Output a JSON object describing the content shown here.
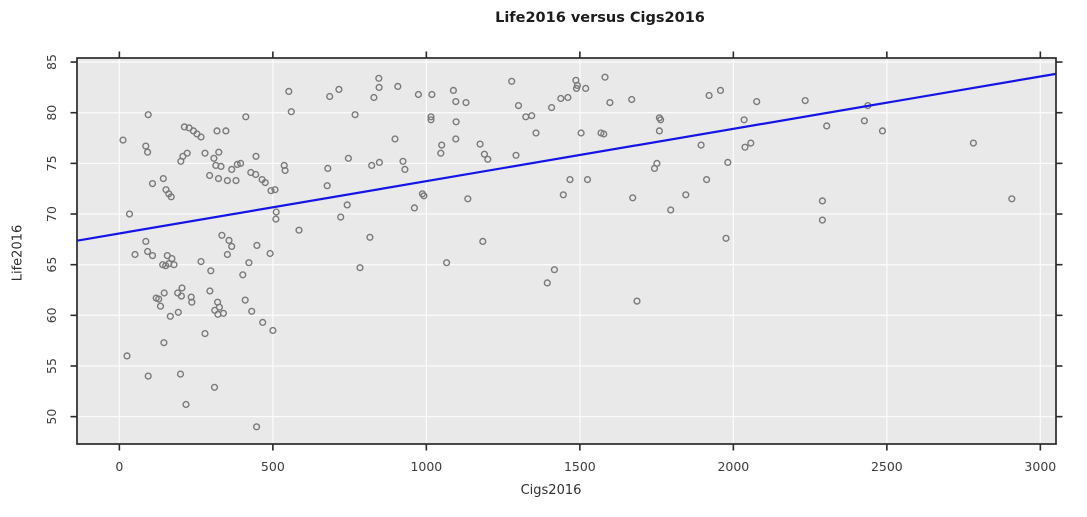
{
  "chart_data": {
    "type": "scatter",
    "title": "Life2016 versus Cigs2016",
    "xlabel": "Cigs2016",
    "ylabel": "Life2016",
    "xlim": [
      -138,
      3051
    ],
    "ylim": [
      47.3,
      85.4
    ],
    "x_ticks": [
      0,
      500,
      1000,
      1500,
      2000,
      2500,
      3000
    ],
    "y_ticks": [
      50,
      55,
      60,
      65,
      70,
      75,
      80,
      85
    ],
    "grid": true,
    "legend_position": "none",
    "regression_line": {
      "slope": 0.005164,
      "intercept": 68.08
    },
    "colors": {
      "panel_bg": "#e9e9e9",
      "gridline": "#fafafa",
      "box": "#2b2b2b",
      "tick": "#2b2b2b",
      "tick_label": "#3d3d3d",
      "point": "#7a7a7a",
      "line": "#1414e6"
    },
    "points": [
      [
        12,
        77.3
      ],
      [
        94,
        79.8
      ],
      [
        86,
        76.7
      ],
      [
        92,
        76.1
      ],
      [
        33,
        70.0
      ],
      [
        212,
        78.6
      ],
      [
        227,
        78.5
      ],
      [
        241,
        78.2
      ],
      [
        253,
        77.9
      ],
      [
        266,
        77.6
      ],
      [
        318,
        78.2
      ],
      [
        347,
        78.2
      ],
      [
        412,
        79.6
      ],
      [
        552,
        82.1
      ],
      [
        560,
        80.1
      ],
      [
        685,
        81.6
      ],
      [
        715,
        82.3
      ],
      [
        768,
        79.8
      ],
      [
        829,
        81.5
      ],
      [
        845,
        83.4
      ],
      [
        846,
        82.5
      ],
      [
        907,
        82.6
      ],
      [
        898,
        77.4
      ],
      [
        924,
        75.2
      ],
      [
        930,
        74.4
      ],
      [
        200,
        75.2
      ],
      [
        207,
        75.7
      ],
      [
        221,
        76.0
      ],
      [
        279,
        76.0
      ],
      [
        308,
        75.5
      ],
      [
        324,
        76.1
      ],
      [
        314,
        74.8
      ],
      [
        331,
        74.7
      ],
      [
        366,
        74.4
      ],
      [
        384,
        74.9
      ],
      [
        395,
        75.0
      ],
      [
        294,
        73.8
      ],
      [
        323,
        73.5
      ],
      [
        352,
        73.3
      ],
      [
        380,
        73.3
      ],
      [
        428,
        74.1
      ],
      [
        444,
        73.9
      ],
      [
        445,
        75.7
      ],
      [
        465,
        73.4
      ],
      [
        475,
        73.1
      ],
      [
        494,
        72.3
      ],
      [
        507,
        72.4
      ],
      [
        537,
        74.8
      ],
      [
        540,
        74.3
      ],
      [
        510,
        69.5
      ],
      [
        511,
        70.2
      ],
      [
        585,
        68.4
      ],
      [
        677,
        72.8
      ],
      [
        679,
        74.5
      ],
      [
        746,
        75.5
      ],
      [
        721,
        69.7
      ],
      [
        742,
        70.9
      ],
      [
        816,
        67.7
      ],
      [
        822,
        74.8
      ],
      [
        847,
        75.1
      ],
      [
        108,
        73.0
      ],
      [
        143,
        73.5
      ],
      [
        152,
        72.4
      ],
      [
        161,
        72.0
      ],
      [
        169,
        71.7
      ],
      [
        86,
        67.3
      ],
      [
        334,
        67.9
      ],
      [
        357,
        67.4
      ],
      [
        352,
        66.0
      ],
      [
        366,
        66.8
      ],
      [
        448,
        66.9
      ],
      [
        51,
        66.0
      ],
      [
        92,
        66.3
      ],
      [
        108,
        65.9
      ],
      [
        141,
        65.0
      ],
      [
        151,
        64.9
      ],
      [
        156,
        65.9
      ],
      [
        161,
        65.1
      ],
      [
        171,
        65.6
      ],
      [
        178,
        65.0
      ],
      [
        266,
        65.3
      ],
      [
        298,
        64.4
      ],
      [
        402,
        64.0
      ],
      [
        422,
        65.2
      ],
      [
        491,
        66.1
      ],
      [
        784,
        64.7
      ],
      [
        120,
        61.7
      ],
      [
        128,
        61.6
      ],
      [
        134,
        60.9
      ],
      [
        146,
        62.2
      ],
      [
        166,
        59.9
      ],
      [
        190,
        62.2
      ],
      [
        192,
        60.3
      ],
      [
        202,
        61.9
      ],
      [
        204,
        62.7
      ],
      [
        295,
        62.4
      ],
      [
        234,
        61.8
      ],
      [
        236,
        61.3
      ],
      [
        311,
        60.5
      ],
      [
        320,
        61.3
      ],
      [
        321,
        60.1
      ],
      [
        326,
        60.8
      ],
      [
        339,
        60.2
      ],
      [
        410,
        61.5
      ],
      [
        431,
        60.4
      ],
      [
        467,
        59.3
      ],
      [
        500,
        58.5
      ],
      [
        279,
        58.2
      ],
      [
        145,
        57.3
      ],
      [
        25,
        56.0
      ],
      [
        94,
        54.0
      ],
      [
        199,
        54.2
      ],
      [
        310,
        52.9
      ],
      [
        217,
        51.2
      ],
      [
        447,
        49.0
      ],
      [
        961,
        70.6
      ],
      [
        974,
        81.8
      ],
      [
        987,
        72.0
      ],
      [
        992,
        71.8
      ],
      [
        1015,
        79.6
      ],
      [
        1015,
        79.3
      ],
      [
        1018,
        81.8
      ],
      [
        1047,
        76.0
      ],
      [
        1050,
        76.8
      ],
      [
        1066,
        65.2
      ],
      [
        1088,
        82.2
      ],
      [
        1096,
        81.1
      ],
      [
        1096,
        77.4
      ],
      [
        1097,
        79.1
      ],
      [
        1129,
        81.0
      ],
      [
        1135,
        71.5
      ],
      [
        1175,
        76.9
      ],
      [
        1184,
        67.3
      ],
      [
        1189,
        75.9
      ],
      [
        1200,
        75.4
      ],
      [
        1278,
        83.1
      ],
      [
        1292,
        75.8
      ],
      [
        1300,
        80.7
      ],
      [
        1324,
        79.6
      ],
      [
        1343,
        79.7
      ],
      [
        1357,
        78.0
      ],
      [
        1394,
        63.2
      ],
      [
        1408,
        80.5
      ],
      [
        1417,
        64.5
      ],
      [
        1438,
        81.4
      ],
      [
        1446,
        71.9
      ],
      [
        1461,
        81.5
      ],
      [
        1468,
        73.4
      ],
      [
        1487,
        83.2
      ],
      [
        1489,
        82.4
      ],
      [
        1492,
        82.7
      ],
      [
        1504,
        78.0
      ],
      [
        1519,
        82.4
      ],
      [
        1525,
        73.4
      ],
      [
        1569,
        78.0
      ],
      [
        1578,
        77.9
      ],
      [
        1582,
        83.5
      ],
      [
        1598,
        81.0
      ],
      [
        1669,
        81.3
      ],
      [
        1672,
        71.6
      ],
      [
        1686,
        61.4
      ],
      [
        1743,
        74.5
      ],
      [
        1751,
        75.0
      ],
      [
        1759,
        79.5
      ],
      [
        1759,
        78.2
      ],
      [
        1763,
        79.3
      ],
      [
        1796,
        70.4
      ],
      [
        1845,
        71.9
      ],
      [
        1895,
        76.8
      ],
      [
        1913,
        73.4
      ],
      [
        1921,
        81.7
      ],
      [
        1958,
        82.2
      ],
      [
        1976,
        67.6
      ],
      [
        1982,
        75.1
      ],
      [
        2035,
        79.3
      ],
      [
        2038,
        76.6
      ],
      [
        2057,
        77.0
      ],
      [
        2076,
        81.1
      ],
      [
        2234,
        81.2
      ],
      [
        2290,
        71.3
      ],
      [
        2290,
        69.4
      ],
      [
        2304,
        78.7
      ],
      [
        2427,
        79.2
      ],
      [
        2438,
        80.7
      ],
      [
        2486,
        78.2
      ],
      [
        2782,
        77.0
      ],
      [
        2907,
        71.5
      ]
    ]
  }
}
